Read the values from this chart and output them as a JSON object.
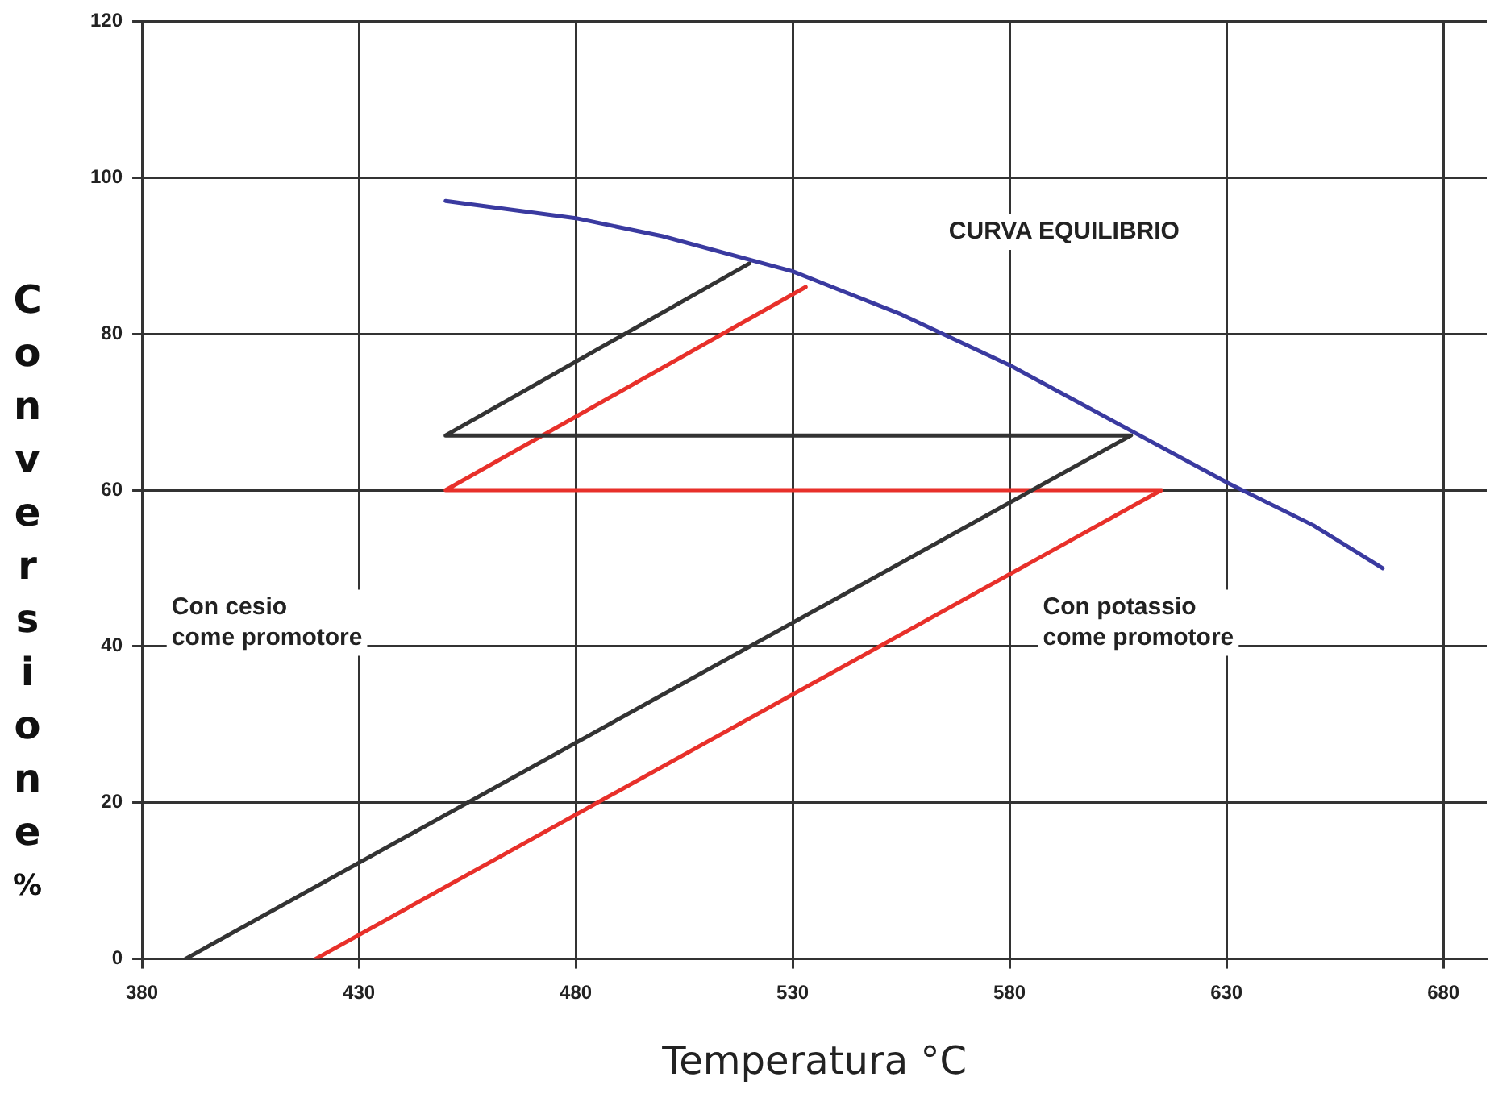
{
  "chart_data": {
    "type": "line",
    "xlabel": "Temperatura °C",
    "ylabel": "Conversione%",
    "xlim": [
      380,
      690
    ],
    "xticks": [
      380,
      430,
      480,
      530,
      580,
      630,
      680
    ],
    "ylim": [
      0,
      120
    ],
    "yticks": [
      0,
      20,
      40,
      60,
      80,
      100,
      120
    ],
    "grid": true,
    "legend": false,
    "marker": "none",
    "line_style": "solid",
    "series": [
      {
        "color": "#3a3aa0",
        "x": [
          450,
          480,
          500,
          530,
          555,
          580,
          605,
          630,
          650,
          666
        ],
        "values": [
          97,
          94.8,
          92.5,
          88,
          82.5,
          76,
          68.5,
          61,
          55.5,
          50
        ]
      },
      {
        "color": "#333333",
        "x": [
          390,
          608,
          450,
          520
        ],
        "values": [
          0,
          67,
          67,
          89
        ]
      },
      {
        "color": "#e8302a",
        "x": [
          420,
          615,
          450,
          533
        ],
        "values": [
          0,
          60,
          60,
          86
        ]
      }
    ],
    "annotations": [
      "CURVA EQUILIBRIO",
      "Con cesio\ncome promotore",
      "Con potassio\ncome promotore"
    ]
  }
}
